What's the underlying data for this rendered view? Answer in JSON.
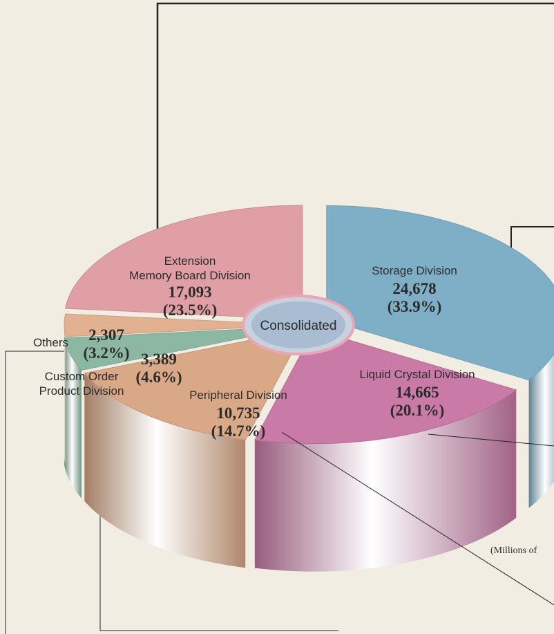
{
  "chart_data": {
    "type": "pie",
    "center_label": "Consolidated",
    "note": "(Millions of",
    "categories": [
      "Storage Division",
      "Liquid Crystal Division",
      "Peripheral Division",
      "Custom Order\nProduct Division",
      "Others",
      "Extension\nMemory Board Division"
    ],
    "values": [
      24678,
      14665,
      10735,
      3389,
      2307,
      17093
    ],
    "value_labels": [
      "24,678",
      "14,665",
      "10,735",
      "3,389",
      "2,307",
      "17,093"
    ],
    "percentages": [
      33.9,
      20.1,
      14.7,
      4.6,
      3.2,
      23.5
    ],
    "percentage_labels": [
      "(33.9%)",
      "(20.1%)",
      "(14.7%)",
      "(4.6%)",
      "(3.2%)",
      "(23.5%)"
    ],
    "colors": [
      "#7fafc7",
      "#c97aa7",
      "#d9a886",
      "#8cb8a3",
      "#e2b191",
      "#e09ea5"
    ]
  }
}
